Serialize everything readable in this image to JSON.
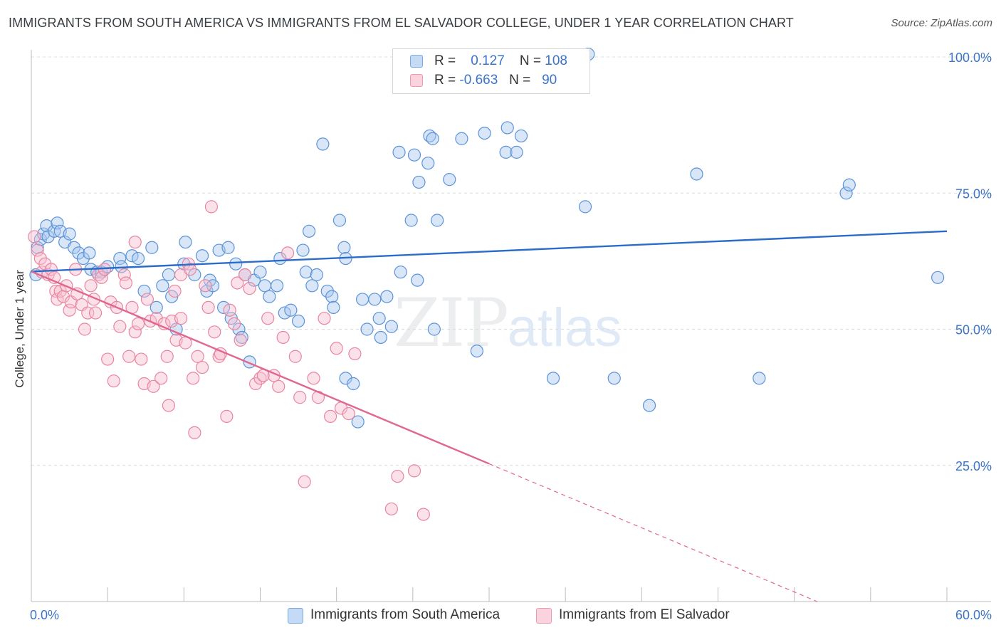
{
  "header": {
    "title": "IMMIGRANTS FROM SOUTH AMERICA VS IMMIGRANTS FROM EL SALVADOR COLLEGE, UNDER 1 YEAR CORRELATION CHART",
    "source": "Source: ZipAtlas.com"
  },
  "legend": {
    "rows": [
      {
        "r_label": "R =",
        "r_value": "0.127",
        "n_label": "N =",
        "n_value": "108",
        "color": "#9ec2ef"
      },
      {
        "r_label": "R =",
        "r_value": "-0.663",
        "n_label": "N =",
        "n_value": "90",
        "color": "#f4b5c8"
      }
    ]
  },
  "watermark": {
    "zip": "ZIP",
    "atlas": "atlas"
  },
  "colors": {
    "blue_fill": "#a9c8ef",
    "blue_stroke": "#5b93d8",
    "blue_line": "#2a6cc9",
    "pink_fill": "#f6bfd0",
    "pink_stroke": "#e9859f",
    "pink_line": "#e0678f",
    "grid": "#dcdcdc",
    "tick_label": "#3b74c9"
  },
  "chart_data": {
    "type": "scatter",
    "title": "IMMIGRANTS FROM SOUTH AMERICA VS IMMIGRANTS FROM EL SALVADOR COLLEGE, UNDER 1 YEAR CORRELATION CHART",
    "xlabel": "",
    "ylabel": "College, Under 1 year",
    "xlim": [
      0,
      60
    ],
    "ylim": [
      0,
      100
    ],
    "x_tick_labels": [
      "0.0%",
      "60.0%"
    ],
    "y_tick_labels": [
      "25.0%",
      "50.0%",
      "75.0%",
      "100.0%"
    ],
    "y_ticks": [
      25,
      50,
      75,
      100
    ],
    "grid": true,
    "legend_position": "top-center",
    "series": [
      {
        "name": "Immigrants from South America",
        "color": "#9ec2ef",
        "trend": {
          "x": [
            0,
            60
          ],
          "y": [
            60.6,
            68.0
          ],
          "solid_until": 60
        },
        "points": [
          [
            0.3,
            60
          ],
          [
            0.4,
            65
          ],
          [
            0.6,
            66.5
          ],
          [
            0.8,
            67.5
          ],
          [
            1.0,
            69
          ],
          [
            1.1,
            67
          ],
          [
            1.5,
            68
          ],
          [
            1.7,
            69.5
          ],
          [
            1.9,
            68
          ],
          [
            2.2,
            66
          ],
          [
            2.5,
            67.5
          ],
          [
            2.8,
            65
          ],
          [
            3.1,
            64
          ],
          [
            3.4,
            63
          ],
          [
            3.8,
            64
          ],
          [
            3.9,
            61
          ],
          [
            4.3,
            60.5
          ],
          [
            4.6,
            60.5
          ],
          [
            5.0,
            61.5
          ],
          [
            5.8,
            63
          ],
          [
            5.9,
            61.5
          ],
          [
            6.6,
            63.5
          ],
          [
            7.0,
            63
          ],
          [
            7.4,
            57
          ],
          [
            7.9,
            65
          ],
          [
            8.2,
            54
          ],
          [
            8.6,
            58
          ],
          [
            9.0,
            60
          ],
          [
            9.2,
            56
          ],
          [
            9.5,
            50
          ],
          [
            10.0,
            62
          ],
          [
            10.1,
            66
          ],
          [
            10.7,
            60
          ],
          [
            11.2,
            63.5
          ],
          [
            11.5,
            57
          ],
          [
            11.7,
            59
          ],
          [
            11.9,
            58
          ],
          [
            12.3,
            64.5
          ],
          [
            12.6,
            54
          ],
          [
            12.9,
            65
          ],
          [
            13.1,
            52
          ],
          [
            13.4,
            62
          ],
          [
            13.6,
            50
          ],
          [
            13.8,
            48.5
          ],
          [
            14.0,
            60
          ],
          [
            14.3,
            44
          ],
          [
            14.6,
            59
          ],
          [
            15.0,
            60.5
          ],
          [
            15.3,
            58
          ],
          [
            15.6,
            56
          ],
          [
            16.1,
            58
          ],
          [
            16.3,
            63
          ],
          [
            16.6,
            53
          ],
          [
            17.0,
            53.5
          ],
          [
            17.5,
            51.5
          ],
          [
            17.8,
            64.5
          ],
          [
            18.0,
            60.5
          ],
          [
            18.2,
            68
          ],
          [
            18.4,
            58
          ],
          [
            18.7,
            60
          ],
          [
            19.1,
            84
          ],
          [
            19.4,
            57
          ],
          [
            19.7,
            56
          ],
          [
            19.8,
            54
          ],
          [
            20.2,
            70
          ],
          [
            20.5,
            65
          ],
          [
            20.6,
            63
          ],
          [
            20.6,
            41
          ],
          [
            21.1,
            40
          ],
          [
            21.4,
            33
          ],
          [
            21.7,
            55.5
          ],
          [
            22.0,
            50
          ],
          [
            22.5,
            55.5
          ],
          [
            22.8,
            52
          ],
          [
            22.9,
            48.5
          ],
          [
            23.3,
            56
          ],
          [
            23.6,
            50.5
          ],
          [
            24.1,
            82.5
          ],
          [
            24.2,
            60.5
          ],
          [
            24.9,
            70
          ],
          [
            25.1,
            82
          ],
          [
            25.3,
            59
          ],
          [
            25.4,
            77
          ],
          [
            26.0,
            80.5
          ],
          [
            26.1,
            85.5
          ],
          [
            26.3,
            85
          ],
          [
            26.4,
            50
          ],
          [
            26.6,
            70
          ],
          [
            27.4,
            77.5
          ],
          [
            28.2,
            85
          ],
          [
            29.2,
            46
          ],
          [
            29.7,
            86
          ],
          [
            31.1,
            82.5
          ],
          [
            31.2,
            87
          ],
          [
            31.8,
            82.5
          ],
          [
            32.1,
            85.5
          ],
          [
            34.2,
            41
          ],
          [
            36.3,
            72.5
          ],
          [
            38.2,
            41
          ],
          [
            40.5,
            36
          ],
          [
            43.6,
            78.5
          ],
          [
            47.7,
            41
          ],
          [
            53.4,
            75
          ],
          [
            53.6,
            76.5
          ],
          [
            59.4,
            59.5
          ],
          [
            36.5,
            100.5
          ]
        ]
      },
      {
        "name": "Immigrants from El Salvador",
        "color": "#f4b5c8",
        "trend": {
          "x": [
            0,
            60
          ],
          "y": [
            60.6,
            -10.0
          ],
          "solid_until": 30.0
        },
        "points": [
          [
            0.2,
            67
          ],
          [
            0.4,
            64.5
          ],
          [
            0.6,
            63
          ],
          [
            0.7,
            60.5
          ],
          [
            0.9,
            62
          ],
          [
            1.1,
            60
          ],
          [
            1.3,
            61
          ],
          [
            1.5,
            59.5
          ],
          [
            1.6,
            57
          ],
          [
            1.7,
            55.5
          ],
          [
            1.9,
            57
          ],
          [
            2.1,
            56
          ],
          [
            2.3,
            58
          ],
          [
            2.5,
            53.5
          ],
          [
            2.6,
            55
          ],
          [
            2.9,
            61
          ],
          [
            3.0,
            56.5
          ],
          [
            3.3,
            54.5
          ],
          [
            3.5,
            50
          ],
          [
            3.7,
            53
          ],
          [
            3.9,
            58
          ],
          [
            4.1,
            55.5
          ],
          [
            4.2,
            53
          ],
          [
            4.4,
            60
          ],
          [
            4.6,
            59.5
          ],
          [
            4.8,
            61
          ],
          [
            5.0,
            44.5
          ],
          [
            5.2,
            55
          ],
          [
            5.4,
            40.5
          ],
          [
            5.6,
            54
          ],
          [
            5.8,
            50.5
          ],
          [
            6.1,
            60
          ],
          [
            6.2,
            58.5
          ],
          [
            6.4,
            45
          ],
          [
            6.6,
            54
          ],
          [
            6.8,
            66
          ],
          [
            6.8,
            49.5
          ],
          [
            7.0,
            51
          ],
          [
            7.2,
            44.5
          ],
          [
            7.4,
            40
          ],
          [
            7.6,
            55.5
          ],
          [
            7.8,
            51.5
          ],
          [
            8.0,
            39.5
          ],
          [
            8.2,
            52
          ],
          [
            8.5,
            41
          ],
          [
            8.7,
            51
          ],
          [
            8.9,
            45
          ],
          [
            9.0,
            36
          ],
          [
            9.2,
            51.5
          ],
          [
            9.4,
            57
          ],
          [
            9.5,
            48
          ],
          [
            9.8,
            52
          ],
          [
            9.8,
            60
          ],
          [
            10.1,
            47.5
          ],
          [
            10.3,
            62
          ],
          [
            10.4,
            61
          ],
          [
            10.6,
            41
          ],
          [
            10.7,
            31
          ],
          [
            10.9,
            45
          ],
          [
            11.2,
            43
          ],
          [
            11.4,
            58
          ],
          [
            11.6,
            54
          ],
          [
            11.8,
            72.5
          ],
          [
            12.0,
            49.5
          ],
          [
            12.3,
            45
          ],
          [
            12.4,
            45.5
          ],
          [
            12.8,
            34
          ],
          [
            13.0,
            53.5
          ],
          [
            13.3,
            51
          ],
          [
            13.5,
            58.5
          ],
          [
            13.7,
            48
          ],
          [
            14.0,
            60
          ],
          [
            14.3,
            57.5
          ],
          [
            14.7,
            40
          ],
          [
            15.0,
            41
          ],
          [
            15.2,
            41.5
          ],
          [
            15.5,
            52
          ],
          [
            15.9,
            41.5
          ],
          [
            16.2,
            39.5
          ],
          [
            16.5,
            48.5
          ],
          [
            16.8,
            64
          ],
          [
            17.3,
            45
          ],
          [
            17.6,
            37.5
          ],
          [
            17.9,
            22
          ],
          [
            18.5,
            41
          ],
          [
            18.8,
            37.5
          ],
          [
            19.2,
            52
          ],
          [
            19.6,
            34
          ],
          [
            20.0,
            46.5
          ],
          [
            20.3,
            35.5
          ],
          [
            20.8,
            34.5
          ],
          [
            21.2,
            45.5
          ],
          [
            23.6,
            17
          ],
          [
            24.0,
            23
          ],
          [
            25.1,
            24
          ],
          [
            25.7,
            16
          ]
        ]
      }
    ]
  },
  "bottom_legend": [
    {
      "label": "Immigrants from South America",
      "color": "#9ec2ef"
    },
    {
      "label": "Immigrants from El Salvador",
      "color": "#f4b5c8"
    }
  ]
}
